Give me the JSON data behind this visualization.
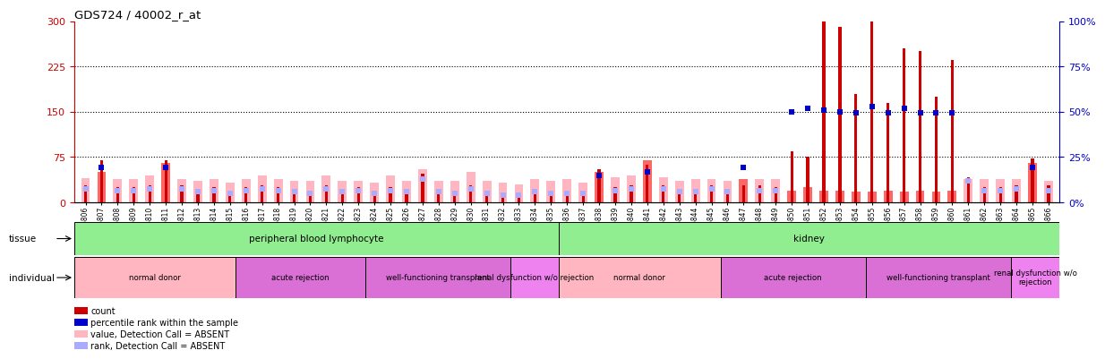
{
  "title": "GDS724 / 40002_r_at",
  "ylim": [
    0,
    300
  ],
  "left_yticks": [
    0,
    75,
    150,
    225,
    300
  ],
  "right_yticks": [
    0,
    25,
    50,
    75,
    100
  ],
  "right_yticklabels": [
    "0%",
    "25%",
    "50%",
    "75%",
    "100%"
  ],
  "samples": [
    "GSM26806",
    "GSM26807",
    "GSM26808",
    "GSM26809",
    "GSM26810",
    "GSM26811",
    "GSM26812",
    "GSM26813",
    "GSM26814",
    "GSM26815",
    "GSM26816",
    "GSM26817",
    "GSM26818",
    "GSM26819",
    "GSM26820",
    "GSM26821",
    "GSM26822",
    "GSM26823",
    "GSM26824",
    "GSM26825",
    "GSM26826",
    "GSM26827",
    "GSM26828",
    "GSM26829",
    "GSM26830",
    "GSM26831",
    "GSM26832",
    "GSM26833",
    "GSM26834",
    "GSM26835",
    "GSM26836",
    "GSM26837",
    "GSM26838",
    "GSM26839",
    "GSM26840",
    "GSM26841",
    "GSM26842",
    "GSM26843",
    "GSM26844",
    "GSM26845",
    "GSM26846",
    "GSM26847",
    "GSM26848",
    "GSM26849",
    "GSM26850",
    "GSM26851",
    "GSM26852",
    "GSM26853",
    "GSM26854",
    "GSM26855",
    "GSM26856",
    "GSM26857",
    "GSM26858",
    "GSM26859",
    "GSM26860",
    "GSM26861",
    "GSM26862",
    "GSM26863",
    "GSM26864",
    "GSM26865",
    "GSM26866"
  ],
  "pink_bar_heights": [
    40,
    50,
    38,
    38,
    45,
    65,
    38,
    35,
    38,
    32,
    38,
    45,
    38,
    35,
    35,
    45,
    35,
    35,
    32,
    45,
    35,
    55,
    35,
    35,
    50,
    35,
    32,
    30,
    38,
    35,
    38,
    32,
    50,
    42,
    45,
    70,
    42,
    35,
    38,
    38,
    35,
    38,
    38,
    38,
    20,
    25,
    20,
    20,
    18,
    18,
    20,
    18,
    20,
    18,
    20,
    38,
    38,
    38,
    38,
    65,
    35
  ],
  "red_bar_heights": [
    28,
    70,
    25,
    25,
    28,
    70,
    28,
    22,
    25,
    20,
    25,
    28,
    25,
    22,
    18,
    28,
    22,
    25,
    18,
    25,
    22,
    48,
    22,
    20,
    28,
    20,
    15,
    15,
    22,
    20,
    20,
    20,
    55,
    25,
    28,
    62,
    28,
    22,
    22,
    28,
    22,
    28,
    28,
    25,
    85,
    75,
    300,
    290,
    180,
    300,
    165,
    255,
    250,
    175,
    235,
    42,
    25,
    25,
    28,
    72,
    28
  ],
  "blue_mark_heights": [
    22,
    58,
    20,
    20,
    22,
    58,
    22,
    18,
    20,
    15,
    20,
    22,
    20,
    18,
    15,
    22,
    18,
    20,
    15,
    20,
    18,
    38,
    18,
    15,
    22,
    15,
    12,
    12,
    18,
    15,
    15,
    15,
    45,
    20,
    22,
    50,
    22,
    18,
    18,
    22,
    18,
    58,
    20,
    20,
    150,
    155,
    152,
    150,
    148,
    158,
    148,
    155,
    148,
    148,
    148,
    35,
    20,
    20,
    22,
    58,
    20
  ],
  "absent_pink": [
    true,
    false,
    true,
    true,
    true,
    false,
    true,
    true,
    true,
    true,
    true,
    true,
    true,
    true,
    true,
    true,
    true,
    true,
    true,
    true,
    true,
    true,
    true,
    true,
    true,
    true,
    true,
    true,
    true,
    true,
    true,
    true,
    false,
    true,
    true,
    false,
    true,
    true,
    true,
    true,
    true,
    false,
    true,
    true,
    false,
    false,
    false,
    false,
    false,
    false,
    false,
    false,
    false,
    false,
    false,
    true,
    true,
    true,
    true,
    false,
    true
  ],
  "absent_blue": [
    true,
    false,
    true,
    true,
    true,
    false,
    true,
    true,
    true,
    true,
    true,
    true,
    true,
    true,
    true,
    true,
    true,
    true,
    true,
    true,
    true,
    true,
    true,
    true,
    true,
    true,
    true,
    true,
    true,
    true,
    true,
    true,
    false,
    true,
    true,
    false,
    true,
    true,
    true,
    true,
    true,
    false,
    true,
    true,
    false,
    false,
    false,
    false,
    false,
    false,
    false,
    false,
    false,
    false,
    false,
    true,
    true,
    true,
    true,
    false,
    true
  ],
  "tissue_groups": [
    {
      "label": "peripheral blood lymphocyte",
      "start": 0,
      "end": 29,
      "color": "#90EE90"
    },
    {
      "label": "kidney",
      "start": 30,
      "end": 60,
      "color": "#90EE90"
    }
  ],
  "individual_groups": [
    {
      "label": "normal donor",
      "start": 0,
      "end": 9,
      "color": "#FFB6C1"
    },
    {
      "label": "acute rejection",
      "start": 10,
      "end": 17,
      "color": "#DA70D6"
    },
    {
      "label": "well-functioning transplant",
      "start": 18,
      "end": 26,
      "color": "#DA70D6"
    },
    {
      "label": "renal dysfunction w/o rejection",
      "start": 27,
      "end": 29,
      "color": "#EE82EE"
    },
    {
      "label": "normal donor",
      "start": 30,
      "end": 39,
      "color": "#FFB6C1"
    },
    {
      "label": "acute rejection",
      "start": 40,
      "end": 48,
      "color": "#DA70D6"
    },
    {
      "label": "well-functioning transplant",
      "start": 49,
      "end": 57,
      "color": "#DA70D6"
    },
    {
      "label": "renal dysfunction w/o\nrejection",
      "start": 58,
      "end": 60,
      "color": "#EE82EE"
    }
  ],
  "left_axis_color": "#CC0000",
  "right_axis_color": "#0000CC",
  "pink_absent_color": "#FFB6C1",
  "pink_present_color": "#FF6666",
  "red_color": "#CC0000",
  "blue_absent_color": "#AAAAFF",
  "blue_present_color": "#0000CC",
  "dot_size": 4
}
